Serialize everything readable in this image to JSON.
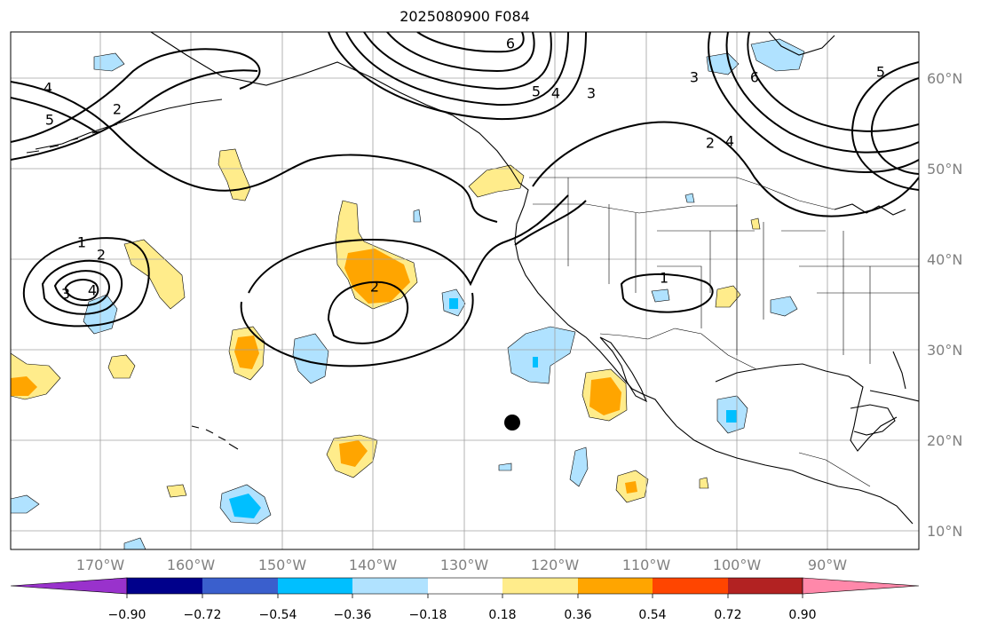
{
  "title": "2025080900 F084",
  "longitude_labels": [
    "170°W",
    "160°W",
    "150°W",
    "140°W",
    "130°W",
    "120°W",
    "110°W",
    "100°W",
    "90°W"
  ],
  "latitude_labels": [
    "60°N",
    "50°N",
    "40°N",
    "30°N",
    "20°N",
    "10°N"
  ],
  "colorbar": {
    "tick_labels": [
      "−0.90",
      "−0.72",
      "−0.54",
      "−0.36",
      "−0.18",
      "0.18",
      "0.36",
      "0.54",
      "0.72",
      "0.90"
    ],
    "colors": [
      "#9932cc",
      "#00008b",
      "#3a5fcd",
      "#00bfff",
      "#b0e2ff",
      "#ffffff",
      "#ffec8b",
      "#ffa500",
      "#ff4500",
      "#b22222",
      "#ff88aa"
    ]
  },
  "fill_colors": {
    "neg_light": "#b0e2ff",
    "neg_mid": "#00bfff",
    "pos_light": "#ffec8b",
    "pos_mid": "#ffa500"
  },
  "contour_labels": [
    "6",
    "5",
    "4",
    "3",
    "6",
    "5",
    "3",
    "2",
    "4",
    "5",
    "4",
    "2",
    "1",
    "2",
    "3",
    "4",
    "2",
    "1"
  ],
  "marker": "black-dot"
}
